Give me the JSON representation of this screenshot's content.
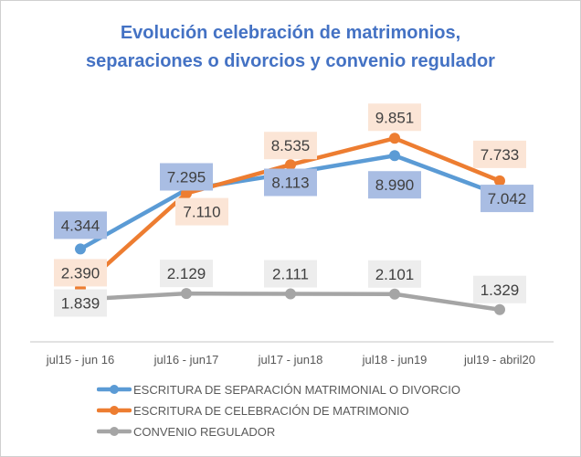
{
  "chart_data": {
    "type": "line",
    "title": [
      "Evolución celebración de matrimonios,",
      "separaciones o divorcios y convenio regulador"
    ],
    "categories": [
      "jul15 - jun 16",
      "jul16 - jun17",
      "jul17 - jun18",
      "jul18 - jun19",
      "jul19 - abril20"
    ],
    "series": [
      {
        "name": "ESCRITURA DE SEPARACIÓN MATRIMONIAL O DIVORCIO",
        "color": "#5b9bd5",
        "label_bg": "#a9bde3",
        "values": [
          4344,
          7295,
          8113,
          8990,
          7042
        ],
        "labels": [
          "4.344",
          "7.295",
          "8.113",
          "8.990",
          "7.042"
        ]
      },
      {
        "name": "ESCRITURA DE CELEBRACIÓN DE MATRIMONIO",
        "color": "#ed7d31",
        "label_bg": "#fbe5d6",
        "values": [
          2390,
          7110,
          8535,
          9851,
          7733
        ],
        "labels": [
          "2.390",
          "7.110",
          "8.535",
          "9.851",
          "7.733"
        ]
      },
      {
        "name": "CONVENIO REGULADOR",
        "color": "#a5a5a5",
        "label_bg": "#ededed",
        "values": [
          1839,
          2129,
          2111,
          2101,
          1329
        ],
        "labels": [
          "1.839",
          "2.129",
          "2.111",
          "2.101",
          "1.329"
        ]
      }
    ],
    "ylim": [
      0,
      10500
    ],
    "grid": false,
    "legend": "bottom",
    "xlabel": "",
    "ylabel": ""
  }
}
